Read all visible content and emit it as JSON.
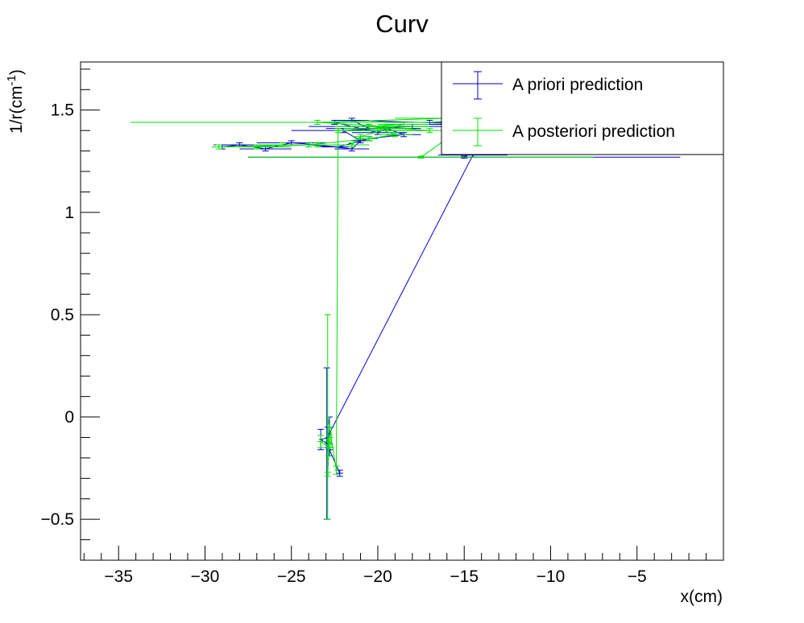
{
  "chart_data": {
    "type": "line",
    "title": "Curv",
    "xlabel": "x(cm)",
    "ylabel_main": "1/r(cm",
    "ylabel_sup": "-1",
    "ylabel_close": ")",
    "xlim": [
      -37.2,
      0.0
    ],
    "ylim": [
      -0.7,
      1.735
    ],
    "x_ticks": [
      -35,
      -30,
      -25,
      -20,
      -15,
      -10,
      -5
    ],
    "x_tick_labels": [
      "−35",
      "−30",
      "−25",
      "−20",
      "−15",
      "−10",
      "−5"
    ],
    "y_ticks": [
      -0.5,
      0,
      0.5,
      1,
      1.5
    ],
    "y_tick_labels": [
      "−0.5",
      "0",
      "0.5",
      "1",
      "1.5"
    ],
    "grid": false,
    "legend_position": "top-right",
    "colors": {
      "a_priori": "#0000cc",
      "a_posteriori": "#00e000"
    },
    "series": [
      {
        "name": "A priori prediction",
        "color": "#0000cc",
        "points": [
          {
            "x": -22.2,
            "y": -0.275,
            "ex": 0.2,
            "ey": 0.015
          },
          {
            "x": -22.8,
            "y": -0.16,
            "ex": 0.1,
            "ey": 0.03
          },
          {
            "x": -22.9,
            "y": -0.1,
            "ex": 0.1,
            "ey": 0.05
          },
          {
            "x": -23.3,
            "y": -0.11,
            "ex": 0.1,
            "ey": 0.05
          },
          {
            "x": -22.95,
            "y": -0.13,
            "ex": 0.1,
            "ey": 0.37
          },
          {
            "x": -22.8,
            "y": -0.08,
            "ex": 0.1,
            "ey": 0.08
          },
          {
            "x": -14.5,
            "y": 1.28,
            "ex": 2.0,
            "ey": 0.01
          },
          {
            "x": -14.0,
            "y": 1.43,
            "ex": 6.0,
            "ey": 0.01
          },
          {
            "x": -21.5,
            "y": 1.45,
            "ex": 1.0,
            "ey": 0.01
          },
          {
            "x": -20.5,
            "y": 1.41,
            "ex": 2.5,
            "ey": 0.01
          },
          {
            "x": -18.0,
            "y": 1.42,
            "ex": 6.0,
            "ey": 0.01
          },
          {
            "x": -22.0,
            "y": 1.4,
            "ex": 3.0,
            "ey": 0.01
          },
          {
            "x": -21.0,
            "y": 1.35,
            "ex": 0.5,
            "ey": 0.01
          },
          {
            "x": -21.5,
            "y": 1.31,
            "ex": 1.0,
            "ey": 0.01
          },
          {
            "x": -23.5,
            "y": 1.33,
            "ex": 2.0,
            "ey": 0.01
          },
          {
            "x": -25.0,
            "y": 1.34,
            "ex": 2.0,
            "ey": 0.01
          },
          {
            "x": -26.5,
            "y": 1.31,
            "ex": 1.5,
            "ey": 0.01
          },
          {
            "x": -28.0,
            "y": 1.33,
            "ex": 1.5,
            "ey": 0.01
          },
          {
            "x": -29.0,
            "y": 1.32,
            "ex": 0.3,
            "ey": 0.01
          },
          {
            "x": -24.0,
            "y": 1.33,
            "ex": 2.5,
            "ey": 0.01
          },
          {
            "x": -22.3,
            "y": 1.32,
            "ex": 1.0,
            "ey": 0.01
          },
          {
            "x": -20.5,
            "y": 1.36,
            "ex": 0.5,
            "ey": 0.01
          },
          {
            "x": -18.5,
            "y": 1.38,
            "ex": 1.0,
            "ey": 0.01
          },
          {
            "x": -19.5,
            "y": 1.41,
            "ex": 2.0,
            "ey": 0.01
          },
          {
            "x": -20.0,
            "y": 1.39,
            "ex": 1.5,
            "ey": 0.01
          },
          {
            "x": -22.5,
            "y": 1.44,
            "ex": 11.8,
            "ey": 0.01
          },
          {
            "x": -17.0,
            "y": 1.44,
            "ex": 2.0,
            "ey": 0.01
          },
          {
            "x": -12.0,
            "y": 1.46,
            "ex": 3.0,
            "ey": 0.01
          },
          {
            "x": -15.0,
            "y": 1.27,
            "ex": 12.5,
            "ey": 0.005
          }
        ]
      },
      {
        "name": "A posteriori prediction",
        "color": "#00e000",
        "points": [
          {
            "x": -22.9,
            "y": -0.28,
            "ex": 0.1,
            "ey": 0.01
          },
          {
            "x": -22.8,
            "y": -0.12,
            "ex": 0.1,
            "ey": 0.03
          },
          {
            "x": -23.3,
            "y": -0.12,
            "ex": 0.2,
            "ey": 0.03
          },
          {
            "x": -22.85,
            "y": -0.15,
            "ex": 0.1,
            "ey": 0.04
          },
          {
            "x": -22.9,
            "y": 0.0,
            "ex": 0.1,
            "ey": 0.5
          },
          {
            "x": -22.7,
            "y": -0.1,
            "ex": 0.1,
            "ey": 0.05
          },
          {
            "x": -22.4,
            "y": -0.26,
            "ex": 0.1,
            "ey": 0.02
          },
          {
            "x": -22.3,
            "y": 1.4,
            "ex": 0.1,
            "ey": 0.01
          },
          {
            "x": -17.0,
            "y": 1.4,
            "ex": 5.5,
            "ey": 0.01
          },
          {
            "x": -20.5,
            "y": 1.42,
            "ex": 2.0,
            "ey": 0.01
          },
          {
            "x": -18.5,
            "y": 1.43,
            "ex": 1.5,
            "ey": 0.01
          },
          {
            "x": -21.0,
            "y": 1.37,
            "ex": 0.5,
            "ey": 0.01
          },
          {
            "x": -21.5,
            "y": 1.33,
            "ex": 1.0,
            "ey": 0.01
          },
          {
            "x": -23.5,
            "y": 1.33,
            "ex": 2.5,
            "ey": 0.01
          },
          {
            "x": -25.5,
            "y": 1.33,
            "ex": 1.5,
            "ey": 0.01
          },
          {
            "x": -27.0,
            "y": 1.32,
            "ex": 2.0,
            "ey": 0.01
          },
          {
            "x": -29.2,
            "y": 1.32,
            "ex": 0.4,
            "ey": 0.01
          },
          {
            "x": -24.0,
            "y": 1.33,
            "ex": 2.0,
            "ey": 0.01
          },
          {
            "x": -20.5,
            "y": 1.36,
            "ex": 0.5,
            "ey": 0.01
          },
          {
            "x": -19.0,
            "y": 1.38,
            "ex": 1.0,
            "ey": 0.01
          },
          {
            "x": -20.0,
            "y": 1.41,
            "ex": 2.0,
            "ey": 0.01
          },
          {
            "x": -19.5,
            "y": 1.42,
            "ex": 2.5,
            "ey": 0.01
          },
          {
            "x": -23.5,
            "y": 1.44,
            "ex": 10.8,
            "ey": 0.01
          },
          {
            "x": -16.0,
            "y": 1.46,
            "ex": 3.0,
            "ey": 0.01
          },
          {
            "x": -14.0,
            "y": 1.48,
            "ex": 1.0,
            "ey": 0.01
          },
          {
            "x": -17.5,
            "y": 1.27,
            "ex": 10.0,
            "ey": 0.005
          }
        ]
      }
    ]
  }
}
